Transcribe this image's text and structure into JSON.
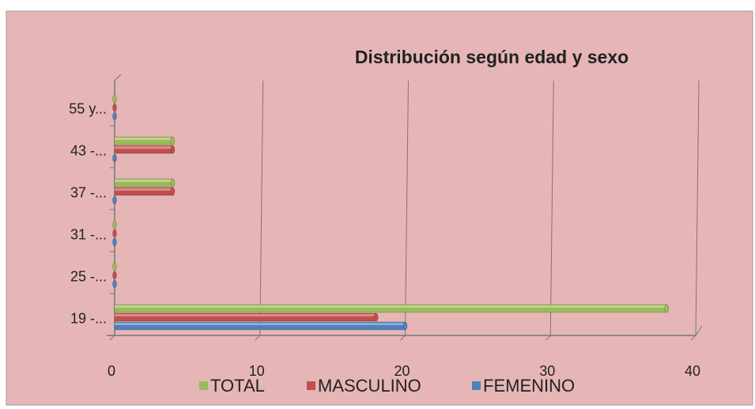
{
  "chart_data": {
    "type": "bar",
    "orientation": "horizontal",
    "title": "Distribución según edad y sexo",
    "categories": [
      "19 -...",
      "25 -...",
      "31 -...",
      "37 -...",
      "43 -...",
      "55 y..."
    ],
    "series": [
      {
        "name": "TOTAL",
        "color": "#9bbb59",
        "values": [
          38,
          0,
          0,
          4,
          4,
          0
        ]
      },
      {
        "name": "MASCULINO",
        "color": "#c0504d",
        "values": [
          18,
          0,
          0,
          4,
          4,
          0
        ]
      },
      {
        "name": "FEMENINO",
        "color": "#4f81bd",
        "values": [
          20,
          0,
          0,
          0,
          0,
          0
        ]
      }
    ],
    "xlim": [
      0,
      40
    ],
    "xticks": [
      0,
      10,
      20,
      30,
      40
    ],
    "grid": true,
    "legend": "bottom"
  }
}
